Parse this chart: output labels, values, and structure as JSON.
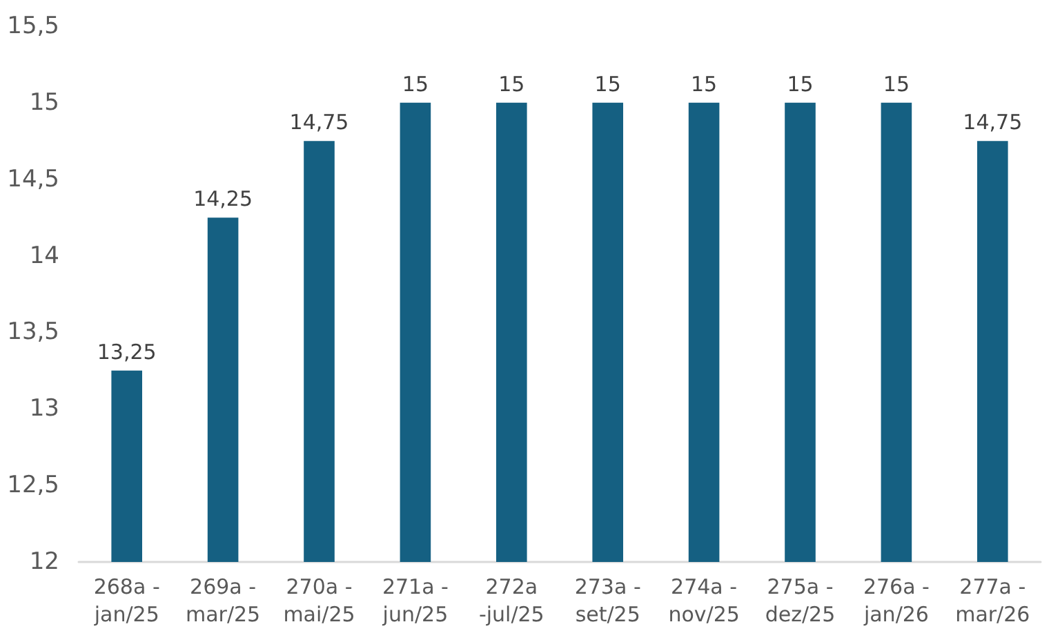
{
  "chart_data": {
    "type": "bar",
    "categories": [
      "268a -\njan/25",
      "269a -\nmar/25",
      "270a -\nmai/25",
      "271a -\njun/25",
      "272a\n-jul/25",
      "273a -\nset/25",
      "274a -\nnov/25",
      "275a -\ndez/25",
      "276a -\njan/26",
      "277a -\nmar/26"
    ],
    "values": [
      13.25,
      14.25,
      14.75,
      15,
      15,
      15,
      15,
      15,
      15,
      14.75
    ],
    "value_labels": [
      "13,25",
      "14,25",
      "14,75",
      "15",
      "15",
      "15",
      "15",
      "15",
      "15",
      "14,75"
    ],
    "color": "#156082",
    "ylim": [
      12,
      15.5
    ],
    "yticks": [
      12,
      {
        "value": 12.5,
        "label": "12,5"
      },
      13,
      {
        "value": 13.5,
        "label": "13,5"
      },
      14,
      {
        "value": 14.5,
        "label": "14,5"
      },
      15,
      {
        "value": 15.5,
        "label": "15,5"
      }
    ]
  }
}
